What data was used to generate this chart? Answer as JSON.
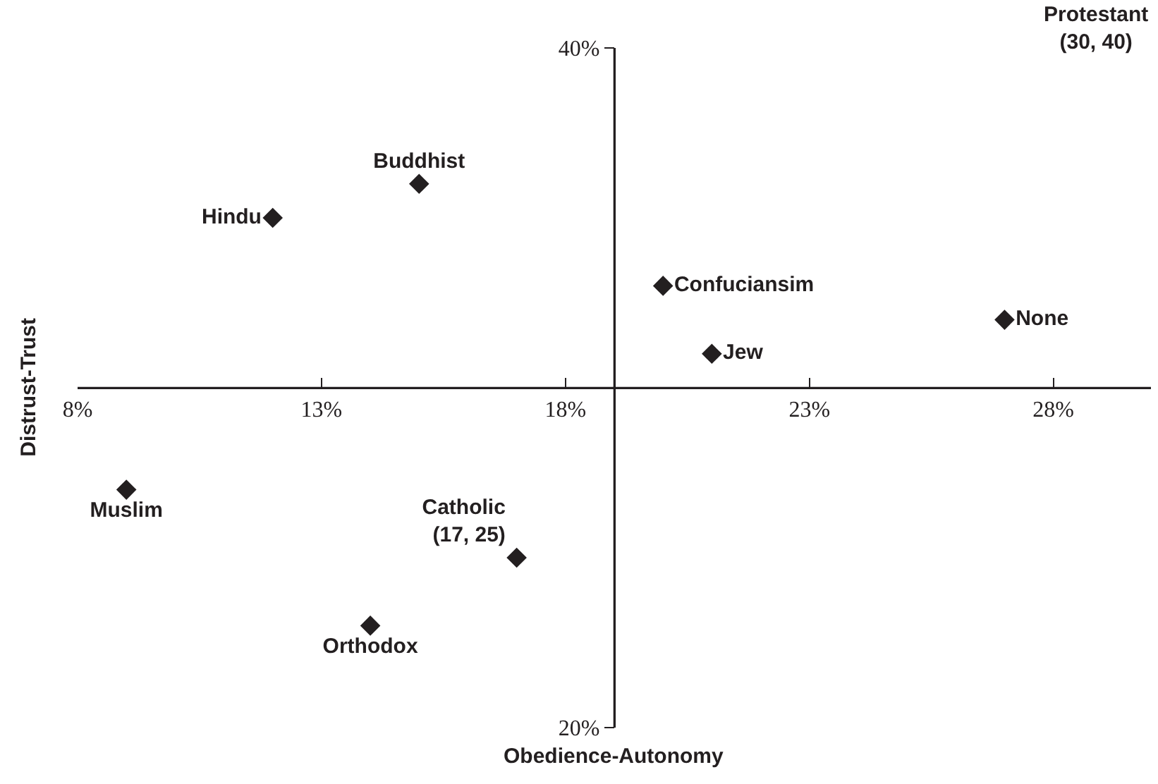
{
  "chart_data": {
    "type": "scatter",
    "xlabel": "Obedience-Autonomy",
    "ylabel": "Distrust-Trust",
    "xlim": [
      8,
      30
    ],
    "ylim": [
      20,
      40
    ],
    "xticks": [
      {
        "value": 8,
        "label": "8%"
      },
      {
        "value": 13,
        "label": "13%"
      },
      {
        "value": 18,
        "label": "18%"
      },
      {
        "value": 23,
        "label": "23%"
      },
      {
        "value": 28,
        "label": "28%"
      }
    ],
    "yticks": [
      {
        "value": 20,
        "label": "20%"
      },
      {
        "value": 40,
        "label": "40%"
      }
    ],
    "ref_lines": [
      {
        "axis": "x",
        "value": 19
      },
      {
        "axis": "y",
        "value": 30
      }
    ],
    "marker": "diamond",
    "legend": false,
    "series": [
      {
        "name": "Buddhist",
        "color": "#231f20",
        "x": [
          15
        ],
        "values": [
          36
        ]
      },
      {
        "name": "Hindu",
        "color": "#231f20",
        "x": [
          12
        ],
        "values": [
          35
        ]
      },
      {
        "name": "Confuciansim",
        "color": "#231f20",
        "x": [
          20
        ],
        "values": [
          33
        ]
      },
      {
        "name": "Jew",
        "color": "#231f20",
        "x": [
          21
        ],
        "values": [
          31
        ]
      },
      {
        "name": "None",
        "color": "#231f20",
        "x": [
          27
        ],
        "values": [
          32
        ]
      },
      {
        "name": "Muslim",
        "color": "#231f20",
        "x": [
          9
        ],
        "values": [
          27
        ]
      },
      {
        "name": "Catholic\n(17, 25)",
        "color": "#231f20",
        "x": [
          17
        ],
        "values": [
          25
        ]
      },
      {
        "name": "Orthodox",
        "color": "#231f20",
        "x": [
          14
        ],
        "values": [
          23
        ]
      }
    ],
    "annotations": [
      "Protestant\n(30, 40)"
    ]
  }
}
